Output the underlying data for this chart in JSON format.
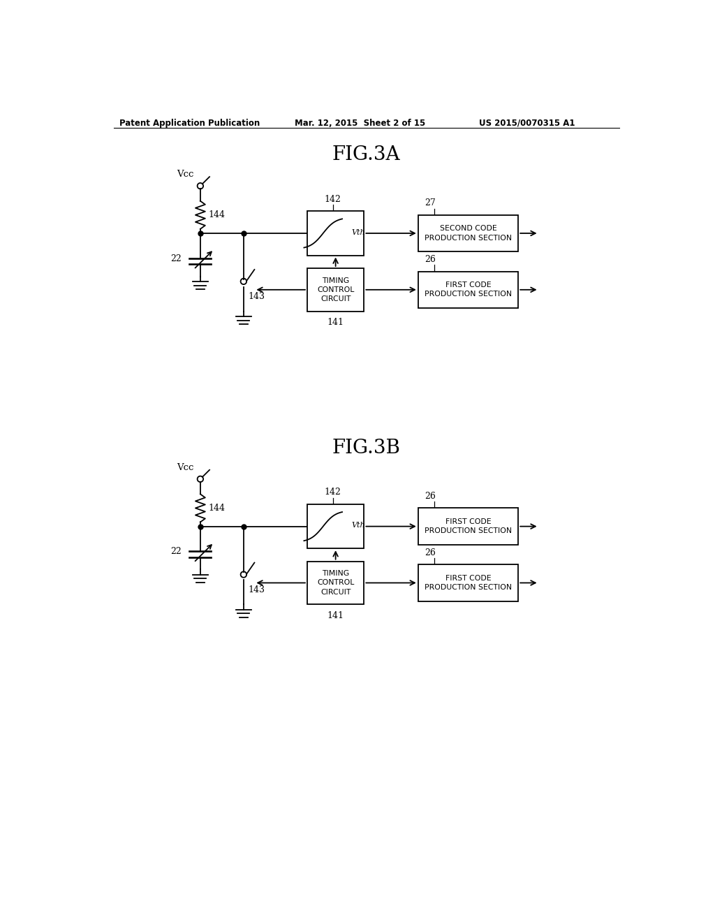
{
  "bg_color": "#ffffff",
  "header_left": "Patent Application Publication",
  "header_mid": "Mar. 12, 2015  Sheet 2 of 15",
  "header_right": "US 2015/0070315 A1",
  "fig3a_title": "FIG.3A",
  "fig3b_title": "FIG.3B",
  "diagrams": [
    {
      "box1_label": "SECOND CODE\nPRODUCTION SECTION",
      "box2_label": "FIRST CODE\nPRODUCTION SECTION",
      "box1_ref": "27",
      "box2_ref": "26"
    },
    {
      "box1_label": "FIRST CODE\nPRODUCTION SECTION",
      "box2_label": "FIRST CODE\nPRODUCTION SECTION",
      "box1_ref": "26",
      "box2_ref": "26"
    }
  ]
}
